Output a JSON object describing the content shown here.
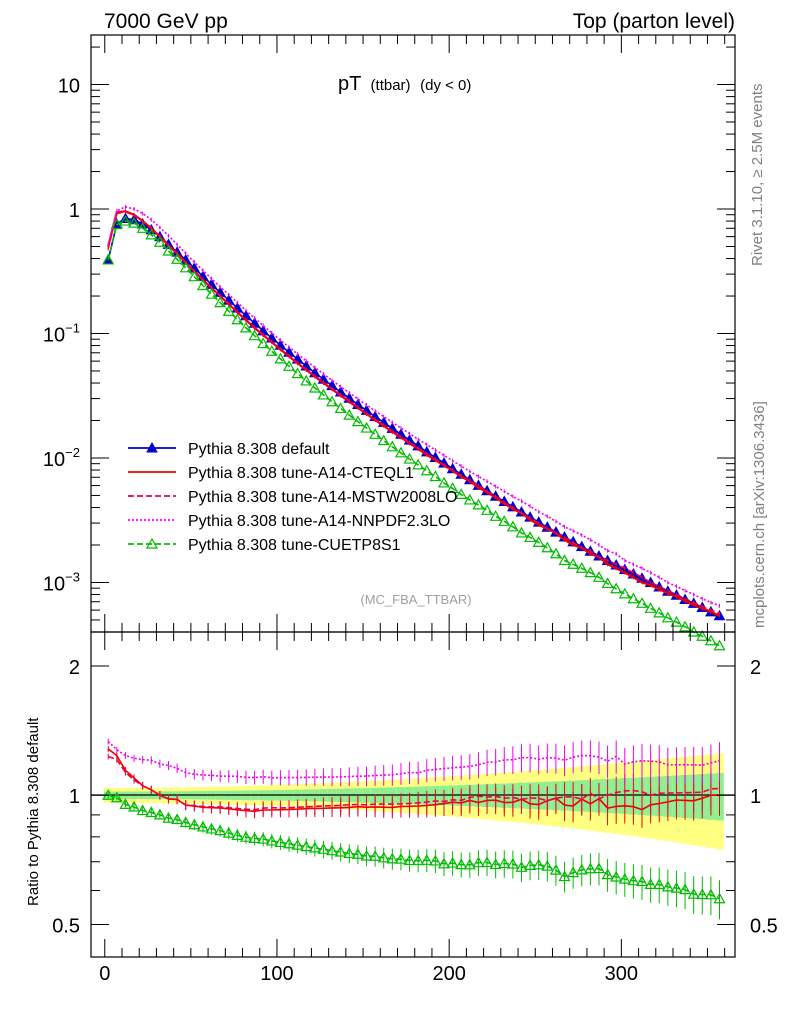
{
  "header": {
    "left": "7000 GeV pp",
    "right": "Top (parton level)"
  },
  "side_labels": {
    "rivet": "Rivet 3.1.10, ≥ 2.5M events",
    "mcplots": "mcplots.cern.ch [arXiv:1306.3436]"
  },
  "chart_data": [
    {
      "type": "line",
      "title": "pT",
      "title_sub": "(ttbar)",
      "title_cond": "(dy < 0)",
      "watermark": "(MC_FBA_TTBAR)",
      "yscale": "log",
      "xlim": [
        -8,
        366
      ],
      "ylim": [
        0.0004,
        25
      ],
      "ytick_labels": [
        {
          "value": 10,
          "base": "10",
          "exp": ""
        },
        {
          "value": 1,
          "base": "1",
          "exp": ""
        },
        {
          "value": 0.1,
          "base": "10",
          "exp": "−1"
        },
        {
          "value": 0.01,
          "base": "10",
          "exp": "−2"
        },
        {
          "value": 0.001,
          "base": "10",
          "exp": "−3"
        }
      ],
      "legend_position": "lower-left",
      "x": [
        2,
        7,
        12,
        17,
        22,
        27,
        32,
        37,
        42,
        47,
        52,
        57,
        62,
        67,
        72,
        77,
        82,
        87,
        92,
        97,
        102,
        107,
        112,
        117,
        122,
        127,
        132,
        137,
        142,
        147,
        152,
        157,
        162,
        167,
        172,
        177,
        182,
        187,
        192,
        197,
        202,
        207,
        212,
        217,
        222,
        227,
        232,
        237,
        242,
        247,
        252,
        257,
        262,
        267,
        272,
        277,
        282,
        287,
        292,
        297,
        302,
        307,
        312,
        317,
        322,
        327,
        332,
        337,
        342,
        347,
        352,
        357
      ],
      "series": [
        {
          "name": "Pythia 8.308 default",
          "color": "#0000cc",
          "dash": "solid",
          "marker": "triangle-filled",
          "values": [
            0.39,
            0.76,
            0.84,
            0.82,
            0.76,
            0.68,
            0.6,
            0.52,
            0.45,
            0.39,
            0.335,
            0.288,
            0.248,
            0.214,
            0.185,
            0.16,
            0.139,
            0.121,
            0.105,
            0.092,
            0.0805,
            0.0707,
            0.0622,
            0.0548,
            0.0484,
            0.0429,
            0.0381,
            0.0339,
            0.0302,
            0.0269,
            0.0241,
            0.0215,
            0.0193,
            0.0173,
            0.0155,
            0.0139,
            0.0125,
            0.0112,
            0.0101,
            0.0091,
            0.0082,
            0.0074,
            0.00668,
            0.00603,
            0.00545,
            0.00493,
            0.00447,
            0.00405,
            0.00368,
            0.00335,
            0.00305,
            0.00278,
            0.00254,
            0.00232,
            0.00212,
            0.00194,
            0.00178,
            0.00163,
            0.0015,
            0.00138,
            0.00127,
            0.00117,
            0.00108,
            0.001,
            0.00092,
            0.00085,
            0.00079,
            0.00073,
            0.00068,
            0.00063,
            0.00058,
            0.00054
          ]
        },
        {
          "name": "Pythia 8.308 tune-A14-CTEQL1",
          "color": "#ee0000",
          "dash": "solid",
          "marker": "none",
          "values": [
            0.5,
            0.94,
            0.96,
            0.9,
            0.8,
            0.7,
            0.6,
            0.51,
            0.44,
            0.37,
            0.316,
            0.27,
            0.232,
            0.2,
            0.172,
            0.148,
            0.128,
            0.111,
            0.097,
            0.085,
            0.0745,
            0.0655,
            0.0577,
            0.051,
            0.0451,
            0.04,
            0.0356,
            0.0317,
            0.0283,
            0.0253,
            0.0226,
            0.0202,
            0.0181,
            0.0162,
            0.0146,
            0.0131,
            0.0118,
            0.0106,
            0.0096,
            0.0087,
            0.0079,
            0.0071,
            0.0065,
            0.0058,
            0.0053,
            0.0048,
            0.0043,
            0.0039,
            0.0036,
            0.0032,
            0.0029,
            0.0027,
            0.0025,
            0.0022,
            0.002,
            0.0019,
            0.0017,
            0.0016,
            0.0014,
            0.0013,
            0.0012,
            0.0011,
            0.001,
            0.00095,
            0.00088,
            0.00082,
            0.00077,
            0.00071,
            0.00066,
            0.00062,
            0.00058,
            0.00054
          ]
        },
        {
          "name": "Pythia 8.308 tune-A14-MSTW2008LO",
          "color": "#ee0044",
          "dash": "dashed",
          "marker": "none",
          "values": [
            0.48,
            0.92,
            0.95,
            0.89,
            0.8,
            0.7,
            0.6,
            0.51,
            0.44,
            0.37,
            0.317,
            0.271,
            0.233,
            0.201,
            0.173,
            0.149,
            0.129,
            0.112,
            0.098,
            0.086,
            0.0752,
            0.0661,
            0.0583,
            0.0515,
            0.0456,
            0.0405,
            0.036,
            0.0321,
            0.0287,
            0.0256,
            0.0229,
            0.0205,
            0.0184,
            0.0165,
            0.0148,
            0.0133,
            0.012,
            0.0108,
            0.0098,
            0.0088,
            0.008,
            0.0072,
            0.0066,
            0.006,
            0.0054,
            0.0049,
            0.0044,
            0.004,
            0.0036,
            0.0033,
            0.003,
            0.0027,
            0.0025,
            0.0023,
            0.0021,
            0.0019,
            0.0018,
            0.0016,
            0.0015,
            0.0014,
            0.0013,
            0.0012,
            0.0011,
            0.001,
            0.00093,
            0.00086,
            0.0008,
            0.00074,
            0.00069,
            0.00064,
            0.0006,
            0.00056
          ]
        },
        {
          "name": "Pythia 8.308 tune-A14-NNPDF2.3LO",
          "color": "#ee00ee",
          "dash": "dotted",
          "marker": "none",
          "values": [
            0.52,
            0.97,
            1.04,
            1.0,
            0.92,
            0.82,
            0.71,
            0.61,
            0.52,
            0.44,
            0.375,
            0.321,
            0.276,
            0.237,
            0.205,
            0.177,
            0.153,
            0.133,
            0.116,
            0.101,
            0.0885,
            0.0777,
            0.0684,
            0.0603,
            0.0533,
            0.0473,
            0.042,
            0.0374,
            0.0334,
            0.0298,
            0.0267,
            0.0239,
            0.0215,
            0.0193,
            0.0174,
            0.0157,
            0.0141,
            0.0128,
            0.0116,
            0.0105,
            0.0095,
            0.0086,
            0.0078,
            0.0071,
            0.0065,
            0.0059,
            0.0054,
            0.0049,
            0.0045,
            0.0041,
            0.0037,
            0.0034,
            0.0031,
            0.0028,
            0.0026,
            0.0024,
            0.0022,
            0.002,
            0.0018,
            0.0017,
            0.0015,
            0.0014,
            0.0013,
            0.0012,
            0.0011,
            0.001,
            0.00093,
            0.00086,
            0.0008,
            0.00074,
            0.00069,
            0.00065
          ]
        },
        {
          "name": "Pythia 8.308 tune-CUETP8S1",
          "color": "#00bb00",
          "dash": "dashed",
          "marker": "triangle-open",
          "values": [
            0.39,
            0.75,
            0.8,
            0.77,
            0.7,
            0.62,
            0.54,
            0.46,
            0.395,
            0.337,
            0.286,
            0.243,
            0.207,
            0.177,
            0.151,
            0.129,
            0.111,
            0.096,
            0.083,
            0.072,
            0.0625,
            0.0545,
            0.0476,
            0.0416,
            0.0365,
            0.0321,
            0.0283,
            0.025,
            0.0221,
            0.0196,
            0.0174,
            0.0155,
            0.0138,
            0.0123,
            0.011,
            0.0098,
            0.0088,
            0.0079,
            0.0071,
            0.0063,
            0.0057,
            0.0051,
            0.0046,
            0.0042,
            0.0038,
            0.0034,
            0.0031,
            0.0028,
            0.0025,
            0.0023,
            0.0021,
            0.0019,
            0.0017,
            0.0015,
            0.0014,
            0.0013,
            0.0012,
            0.0011,
            0.00098,
            0.00089,
            0.00081,
            0.00074,
            0.00068,
            0.00062,
            0.00057,
            0.00052,
            0.00048,
            0.00044,
            0.0004,
            0.00037,
            0.00034,
            0.00031
          ]
        }
      ]
    },
    {
      "type": "line",
      "ylabel": "Ratio to Pythia 8.308 default",
      "yscale": "log",
      "xlim": [
        -8,
        366
      ],
      "ylim": [
        0.42,
        2.4
      ],
      "ytick_labels": [
        {
          "value": 2,
          "label": "2"
        },
        {
          "value": 1,
          "label": "1"
        },
        {
          "value": 0.5,
          "label": "0.5"
        }
      ],
      "xtick_labels": [
        {
          "value": 0,
          "label": "0"
        },
        {
          "value": 100,
          "label": "100"
        },
        {
          "value": 200,
          "label": "200"
        },
        {
          "value": 300,
          "label": "300"
        }
      ],
      "reference_line": 1,
      "band_note": "default statistical uncertainty band (green 1σ, yellow 2σ)"
    }
  ]
}
